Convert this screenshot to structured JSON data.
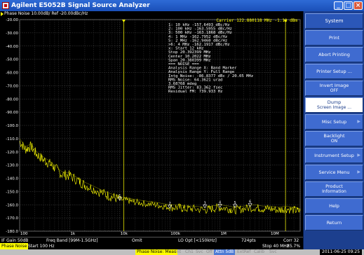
{
  "window": {
    "title": "Agilent E5052B Signal Source Analyzer"
  },
  "trace_header": "Phase Noise 10.00dB/ Ref -20.00dBc/Hz",
  "chart_data": {
    "type": "line",
    "xscale": "log",
    "xlim": [
      100,
      40000000
    ],
    "ylim": [
      -180,
      -20
    ],
    "yticks": [
      -20,
      -30,
      -40,
      -50,
      -60,
      -70,
      -80,
      -90,
      -100,
      -110,
      -120,
      -130,
      -140,
      -150,
      -160,
      -170,
      -180
    ],
    "ytick_labels": [
      "-20.00",
      "-30.00",
      "-40.00",
      "-50.00",
      "-60.00",
      "-70.00",
      "-80.00",
      "-90.00",
      "-100.0",
      "-110.0",
      "-120.0",
      "-130.0",
      "-140.0",
      "-150.0",
      "-160.0",
      "-170.0",
      "-180.0"
    ],
    "xticks": [
      100,
      1000,
      10000,
      100000,
      1000000,
      10000000
    ],
    "xtick_labels": [
      "100",
      "1k",
      "10k",
      "100k",
      "1M",
      "10M"
    ],
    "carrier_label": "Carrier 122.880118 MHz  -1.11 dBm",
    "series": [
      {
        "x": [
          100,
          130,
          170,
          220,
          300,
          400,
          500,
          700,
          1000,
          1500,
          2000,
          3000,
          5000,
          7000,
          10000,
          15000,
          20000,
          30000,
          50000,
          70000,
          100000,
          150000,
          200000,
          300000,
          500000,
          700000,
          1000000,
          1500000,
          2000000,
          3000000,
          5000000,
          7000000,
          10000000,
          15000000,
          20000000,
          30000000,
          40000000
        ],
        "y": [
          -112,
          -118,
          -116,
          -122,
          -126,
          -129,
          -132,
          -137,
          -138,
          -142,
          -145,
          -148,
          -152,
          -154,
          -156,
          -157,
          -158,
          -159,
          -160,
          -161,
          -162,
          -162,
          -163,
          -163,
          -164,
          -163,
          -162,
          -163,
          -164,
          -163,
          -162,
          -163,
          -163,
          -164,
          -163,
          -164,
          -165
        ]
      }
    ],
    "markers": [
      {
        "label": "1",
        "x": 10000,
        "y": -157.6493
      },
      {
        "label": "2",
        "x": 100000,
        "y": -163.5955
      },
      {
        "label": "3",
        "x": 500000,
        "y": -163.1868
      },
      {
        "label": "4",
        "x": 1000000,
        "y": -162.7952
      },
      {
        "label": "5",
        "x": 2000000,
        "y": -162.946
      },
      {
        "label": "6",
        "x": 4000000,
        "y": -162.1917
      }
    ],
    "band_markers_x": [
      12000,
      20392399
    ]
  },
  "readout": [
    "1:  10 kHz   -157.6493  dBc/Hz",
    "2:  100 kHz  -163.5955  dBc/Hz",
    "3:  500 kHz  -163.1868  dBc/Hz",
    "4:  1 MHz    -162.7952  dBc/Hz",
    "5:  2 MHz    -162.9460  dBc/Hz",
    ">6: 4 MHz    -162.1917  dBc/Hz",
    "x: Start 12 kHz",
    "     Stop 20.392399 MHz",
    "   Center 10.2022 MHz",
    "     Span 20.380399 MHz",
    "=== NOISE ===",
    "Analysis Range X: Band Marker",
    "Analysis Range Y: Full Range",
    "Intg Noise: -86.8377 dBc / 20.05 MHz",
    "RMS Noise: 64.3621 urad",
    "           3.68768 mdeg",
    "RMS Jitter: 83.362 fsec",
    "Residual FM: 739.933 Hz"
  ],
  "status_row1": {
    "if_gain": "IF Gain 50dB",
    "freq_band": "Freq Band [99M-1.5GHz]",
    "omit": "Omit",
    "lo_opt": "LO Opt [<150kHz]",
    "points": "724pts",
    "corr": "Corr 32"
  },
  "status_row2": {
    "mode": "Phase Noise",
    "start": "Start 100 Hz",
    "stop": "Stop 40 MHz",
    "percent": "85.7%"
  },
  "status_row3": {
    "meas": "Phase Noise: Meas",
    "dim1": "Int",
    "dim2": "Ch1",
    "dim3": "Svc",
    "dim4": "Off",
    "attn": "Attn 5dB",
    "dim5": "ExtRef",
    "dim6": "Calib",
    "dim7": "Svc",
    "time": "2011-06-25 09:25"
  },
  "softkeys": [
    {
      "label": "System"
    },
    {
      "label": "Print"
    },
    {
      "label": "Abort Printing"
    },
    {
      "label": "Printer Setup ..."
    },
    {
      "label": "Invert Image",
      "sub": "OFF"
    },
    {
      "label": "Dump",
      "sub": "Screen Image ..."
    },
    {
      "label": "Misc Setup"
    },
    {
      "label": "Backlight",
      "sub": "ON"
    },
    {
      "label": "Instrument Setup"
    },
    {
      "label": "Service Menu"
    },
    {
      "label": "Product",
      "sub": "Information"
    },
    {
      "label": "Help"
    },
    {
      "label": "Return"
    }
  ],
  "colors": {
    "trace": "#ffff00",
    "grid": "#4a4a4a",
    "softkey_bg": "#3f6bd0",
    "softkey_highlight": "#ffffff"
  }
}
